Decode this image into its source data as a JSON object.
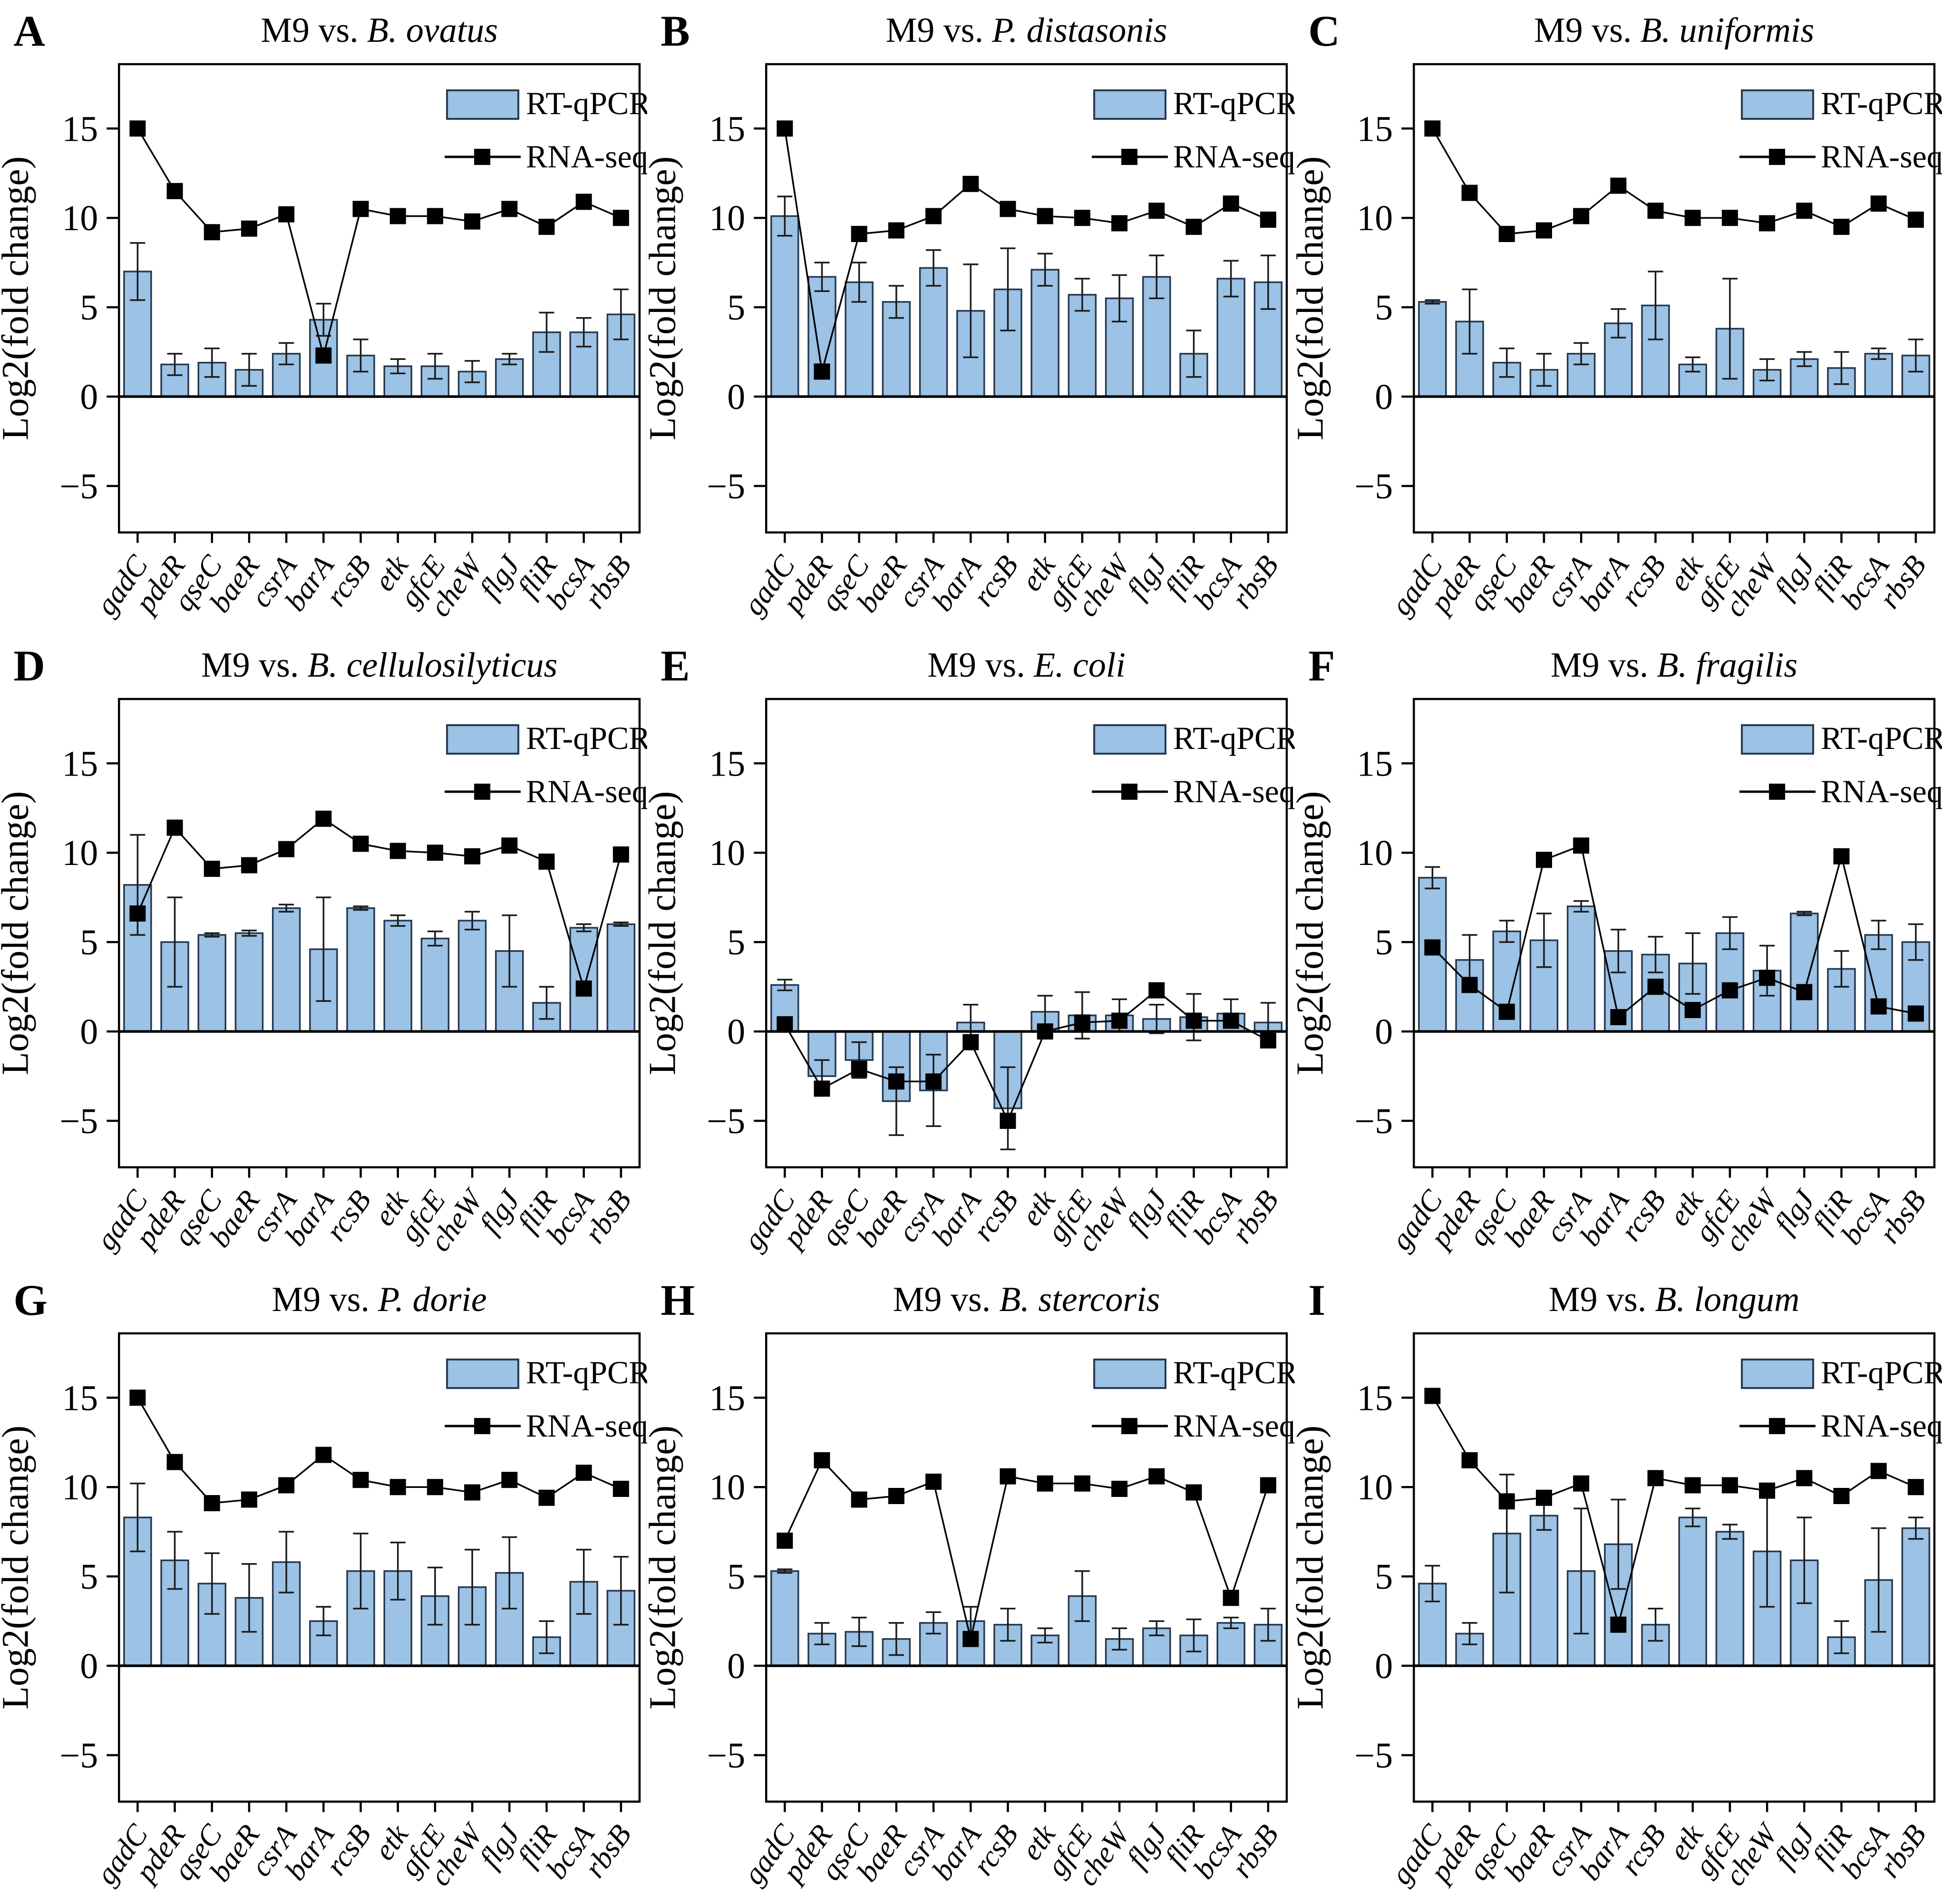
{
  "figure": {
    "y_axis_label": "Log2(fold change)",
    "title_prefix": "M9 vs.",
    "legend": {
      "bar_label": "RT-qPCR",
      "line_label": "RNA-seq"
    },
    "colors": {
      "bar_fill": "#9CC2E5",
      "bar_stroke": "#26394F",
      "error_bar": "#1a1a1a",
      "line": "#000000",
      "marker": "#000000",
      "axis": "#000000"
    }
  },
  "chart_data": {
    "type": "bar+line",
    "title_prefix": "M9 vs.",
    "xlabel": "",
    "ylabel": "Log2(fold change)",
    "ylim": [
      -7.6,
      18.6
    ],
    "y_ticks": [
      15,
      10,
      5,
      0,
      -5
    ],
    "grid": false,
    "legend_position": "top-right-inside",
    "categories": [
      "gadC",
      "pdeR",
      "qseC",
      "baeR",
      "csrA",
      "barA",
      "rcsB",
      "etk",
      "gfcE",
      "cheW",
      "flgJ",
      "fliR",
      "bcsA",
      "rbsB"
    ],
    "series_names": [
      "RT-qPCR",
      "RNA-seq"
    ],
    "panels": [
      {
        "panel_letter": "A",
        "species": "B. ovatus",
        "qpcr": [
          7.0,
          1.8,
          1.9,
          1.5,
          2.4,
          4.3,
          2.3,
          1.7,
          1.7,
          1.4,
          2.1,
          3.6,
          3.6,
          4.6
        ],
        "qpcr_err": [
          1.6,
          0.6,
          0.8,
          0.9,
          0.6,
          0.9,
          0.9,
          0.4,
          0.7,
          0.6,
          0.3,
          1.1,
          0.8,
          1.4
        ],
        "rnaseq": [
          15.0,
          11.5,
          9.2,
          9.4,
          10.2,
          2.3,
          10.5,
          10.1,
          10.1,
          9.8,
          10.5,
          9.5,
          10.9,
          10.0
        ]
      },
      {
        "panel_letter": "B",
        "species": "P. distasonis",
        "qpcr": [
          10.1,
          6.7,
          6.4,
          5.3,
          7.2,
          4.8,
          6.0,
          7.1,
          5.7,
          5.5,
          6.7,
          2.4,
          6.6,
          6.4
        ],
        "qpcr_err": [
          1.1,
          0.8,
          1.1,
          0.9,
          1.0,
          2.6,
          2.3,
          0.9,
          0.9,
          1.3,
          1.2,
          1.3,
          1.0,
          1.5
        ],
        "rnaseq": [
          15.0,
          1.4,
          9.1,
          9.3,
          10.1,
          11.9,
          10.5,
          10.1,
          10.0,
          9.7,
          10.4,
          9.5,
          10.8,
          9.9
        ]
      },
      {
        "panel_letter": "C",
        "species": "B. uniformis",
        "qpcr": [
          5.3,
          4.2,
          1.9,
          1.5,
          2.4,
          4.1,
          5.1,
          1.8,
          3.8,
          1.5,
          2.1,
          1.6,
          2.4,
          2.3
        ],
        "qpcr_err": [
          0.1,
          1.8,
          0.8,
          0.9,
          0.6,
          0.8,
          1.9,
          0.4,
          2.8,
          0.6,
          0.4,
          0.9,
          0.3,
          0.9
        ],
        "rnaseq": [
          15.0,
          11.4,
          9.1,
          9.3,
          10.1,
          11.8,
          10.4,
          10.0,
          10.0,
          9.7,
          10.4,
          9.5,
          10.8,
          9.9
        ]
      },
      {
        "panel_letter": "D",
        "species": "B. cellulosilyticus",
        "qpcr": [
          8.2,
          5.0,
          5.4,
          5.5,
          6.9,
          4.6,
          6.9,
          6.2,
          5.2,
          6.2,
          4.5,
          1.6,
          5.8,
          6.0
        ],
        "qpcr_err": [
          2.8,
          2.5,
          0.1,
          0.15,
          0.2,
          2.9,
          0.1,
          0.3,
          0.4,
          0.5,
          2.0,
          0.9,
          0.2,
          0.1
        ],
        "rnaseq": [
          6.6,
          11.4,
          9.1,
          9.3,
          10.2,
          11.9,
          10.5,
          10.1,
          10.0,
          9.8,
          10.4,
          9.5,
          2.4,
          9.9
        ]
      },
      {
        "panel_letter": "E",
        "species": "E. coli",
        "qpcr": [
          2.6,
          -2.5,
          -1.6,
          -3.9,
          -3.3,
          0.5,
          -4.3,
          1.1,
          0.9,
          0.9,
          0.7,
          0.8,
          1.0,
          0.5
        ],
        "qpcr_err": [
          0.3,
          0.9,
          1.0,
          1.9,
          2.0,
          1.0,
          2.3,
          0.9,
          1.3,
          0.9,
          0.8,
          1.3,
          0.8,
          1.1
        ],
        "rnaseq": [
          0.4,
          -3.2,
          -2.1,
          -2.8,
          -2.8,
          -0.6,
          -5.0,
          0.0,
          0.5,
          0.6,
          2.3,
          0.6,
          0.6,
          -0.5
        ]
      },
      {
        "panel_letter": "F",
        "species": "B. fragilis",
        "qpcr": [
          8.6,
          4.0,
          5.6,
          5.1,
          7.0,
          4.5,
          4.3,
          3.8,
          5.5,
          3.4,
          6.6,
          3.5,
          5.4,
          5.0
        ],
        "qpcr_err": [
          0.6,
          1.4,
          0.6,
          1.5,
          0.3,
          1.2,
          1.0,
          1.7,
          0.9,
          1.4,
          0.1,
          1.0,
          0.8,
          1.0
        ],
        "rnaseq": [
          4.7,
          2.6,
          1.1,
          9.6,
          10.4,
          0.8,
          2.5,
          1.2,
          2.3,
          3.0,
          2.2,
          9.8,
          1.4,
          1.0
        ]
      },
      {
        "panel_letter": "G",
        "species": "P. dorie",
        "qpcr": [
          8.3,
          5.9,
          4.6,
          3.8,
          5.8,
          2.5,
          5.3,
          5.3,
          3.9,
          4.4,
          5.2,
          1.6,
          4.7,
          4.2
        ],
        "qpcr_err": [
          1.9,
          1.6,
          1.7,
          1.9,
          1.7,
          0.8,
          2.1,
          1.6,
          1.6,
          2.1,
          2.0,
          0.9,
          1.8,
          1.9
        ],
        "rnaseq": [
          15.0,
          11.4,
          9.1,
          9.3,
          10.1,
          11.8,
          10.4,
          10.0,
          10.0,
          9.7,
          10.4,
          9.4,
          10.8,
          9.9
        ]
      },
      {
        "panel_letter": "H",
        "species": "B. stercoris",
        "qpcr": [
          5.3,
          1.8,
          1.9,
          1.5,
          2.4,
          2.5,
          2.3,
          1.7,
          3.9,
          1.5,
          2.1,
          1.7,
          2.4,
          2.3
        ],
        "qpcr_err": [
          0.1,
          0.6,
          0.8,
          0.9,
          0.6,
          0.8,
          0.9,
          0.4,
          1.4,
          0.6,
          0.4,
          0.9,
          0.3,
          0.9
        ],
        "rnaseq": [
          7.0,
          11.5,
          9.3,
          9.5,
          10.3,
          1.5,
          10.6,
          10.2,
          10.2,
          9.9,
          10.6,
          9.7,
          3.8,
          10.1
        ]
      },
      {
        "panel_letter": "I",
        "species": "B. longum",
        "qpcr": [
          4.6,
          1.8,
          7.4,
          8.4,
          5.3,
          6.8,
          2.3,
          8.3,
          7.5,
          6.4,
          5.9,
          1.6,
          4.8,
          7.7
        ],
        "qpcr_err": [
          1.0,
          0.6,
          3.3,
          0.8,
          3.5,
          2.5,
          0.9,
          0.5,
          0.4,
          3.1,
          2.4,
          0.9,
          2.9,
          0.6
        ],
        "rnaseq": [
          15.1,
          11.5,
          9.2,
          9.4,
          10.2,
          2.3,
          10.5,
          10.1,
          10.1,
          9.8,
          10.5,
          9.5,
          10.9,
          10.0
        ]
      }
    ]
  }
}
